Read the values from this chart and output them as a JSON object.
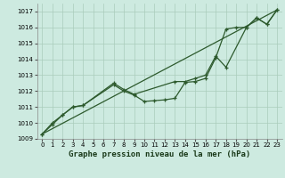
{
  "background_color": "#cdeae0",
  "grid_color": "#aaccbb",
  "line_color": "#2d5a2d",
  "xlabel": "Graphe pression niveau de la mer (hPa)",
  "ylim": [
    1009,
    1017.5
  ],
  "xlim": [
    -0.5,
    23.5
  ],
  "yticks": [
    1009,
    1010,
    1011,
    1012,
    1013,
    1014,
    1015,
    1016,
    1017
  ],
  "xticks": [
    0,
    1,
    2,
    3,
    4,
    5,
    6,
    7,
    8,
    9,
    10,
    11,
    12,
    13,
    14,
    15,
    16,
    17,
    18,
    19,
    20,
    21,
    22,
    23
  ],
  "series1_x": [
    0,
    1,
    2,
    3,
    4,
    7,
    8,
    9,
    13,
    14,
    15,
    16,
    17,
    18,
    20,
    21,
    22,
    23
  ],
  "series1_y": [
    1009.3,
    1010.0,
    1010.5,
    1011.0,
    1011.1,
    1012.5,
    1012.1,
    1011.8,
    1012.6,
    1012.6,
    1012.8,
    1013.0,
    1014.2,
    1013.5,
    1016.0,
    1016.6,
    1016.2,
    1017.1
  ],
  "series2_x": [
    0,
    1,
    2,
    3,
    4,
    7,
    8,
    9,
    10,
    11,
    12,
    13,
    14,
    15,
    16,
    17,
    18,
    19,
    20,
    21,
    22,
    23
  ],
  "series2_y": [
    1009.3,
    1009.9,
    1010.5,
    1011.0,
    1011.1,
    1012.4,
    1012.0,
    1011.75,
    1011.35,
    1011.4,
    1011.45,
    1011.55,
    1012.55,
    1012.6,
    1012.8,
    1014.1,
    1015.9,
    1016.0,
    1016.0,
    1016.6,
    1016.2,
    1017.1
  ],
  "series3_x": [
    0,
    23
  ],
  "series3_y": [
    1009.3,
    1017.1
  ],
  "tick_labelsize": 5,
  "xlabel_fontsize": 6.5
}
